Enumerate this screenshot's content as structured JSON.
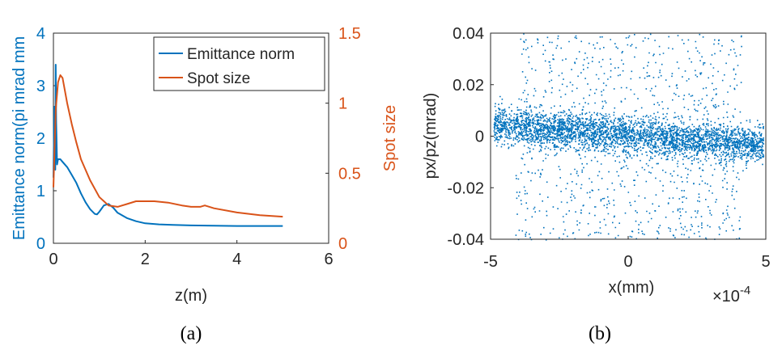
{
  "colors": {
    "blue": "#0072BD",
    "orange": "#D95319",
    "axis": "#262626",
    "bg": "#ffffff"
  },
  "chart_data": [
    {
      "type": "line",
      "panel": "a",
      "caption": "(a)",
      "xlabel": "z(m)",
      "xlim": [
        0,
        6
      ],
      "xticks": [
        "0",
        "2",
        "4",
        "6"
      ],
      "ylabel_left": "Emittance norm(pi mrad mm",
      "ylim_left": [
        0,
        4
      ],
      "yticks_left": [
        "0",
        "1",
        "2",
        "3",
        "4"
      ],
      "ylabel_right": "Spot size",
      "ylim_right": [
        0,
        1.5
      ],
      "yticks_right": [
        "0",
        "0.5",
        "1",
        "1.5"
      ],
      "legend_position": "top-right",
      "series": [
        {
          "name": "Emittance norm",
          "axis": "left",
          "color": "#0072BD",
          "x": [
            0,
            0.02,
            0.04,
            0.05,
            0.06,
            0.08,
            0.1,
            0.15,
            0.2,
            0.3,
            0.4,
            0.5,
            0.6,
            0.7,
            0.8,
            0.9,
            0.95,
            1.0,
            1.1,
            1.2,
            1.3,
            1.4,
            1.6,
            1.8,
            2.0,
            2.3,
            2.6,
            3.0,
            3.5,
            4.0,
            4.5,
            5.0
          ],
          "values": [
            1.25,
            2.6,
            1.4,
            3.4,
            2.3,
            1.5,
            1.6,
            1.6,
            1.55,
            1.45,
            1.3,
            1.15,
            0.95,
            0.78,
            0.65,
            0.56,
            0.55,
            0.6,
            0.72,
            0.75,
            0.68,
            0.58,
            0.48,
            0.42,
            0.38,
            0.36,
            0.35,
            0.34,
            0.335,
            0.33,
            0.33,
            0.33
          ]
        },
        {
          "name": "Spot size",
          "axis": "right",
          "color": "#D95319",
          "x": [
            0,
            0.05,
            0.1,
            0.15,
            0.2,
            0.3,
            0.4,
            0.5,
            0.6,
            0.8,
            1.0,
            1.2,
            1.4,
            1.6,
            1.8,
            2.0,
            2.2,
            2.5,
            2.8,
            3.0,
            3.2,
            3.3,
            3.5,
            4.0,
            4.5,
            5.0
          ],
          "values": [
            0.4,
            0.95,
            1.15,
            1.2,
            1.18,
            1.0,
            0.85,
            0.72,
            0.6,
            0.45,
            0.33,
            0.27,
            0.26,
            0.28,
            0.3,
            0.3,
            0.3,
            0.29,
            0.27,
            0.26,
            0.26,
            0.27,
            0.25,
            0.22,
            0.2,
            0.19
          ]
        }
      ]
    },
    {
      "type": "scatter",
      "panel": "b",
      "caption": "(b)",
      "xlabel": "x(mm)",
      "xlim": [
        -5,
        5
      ],
      "xticks": [
        "-5",
        "0",
        "5"
      ],
      "x_multiplier": "×10",
      "x_multiplier_exponent": "-4",
      "ylabel": "px/pz(mrad)",
      "ylim": [
        -0.04,
        0.04
      ],
      "yticks": [
        "0.04",
        "0.02",
        "0",
        "-0.02",
        "-0.04"
      ],
      "color": "#0072BD",
      "distribution": "dense core along y ≈ -0.0008·x, core spread ±0.004, sparse halo spanning x ∈ [-4, 4], y ∈ [-0.04, 0.04]",
      "point_count": 6500
    }
  ]
}
